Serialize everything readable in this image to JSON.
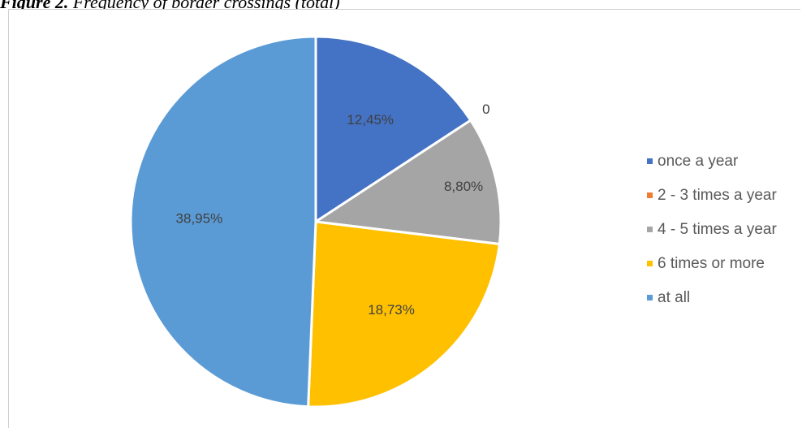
{
  "figure": {
    "caption_prefix": "Figure 2.",
    "caption_text": " Frequency of border crossings (total)"
  },
  "chart_data": {
    "type": "pie",
    "title": "",
    "categories": [
      "once a year",
      "2 - 3 times a year",
      "4 - 5 times a year",
      "6 times or more",
      "at all"
    ],
    "values": [
      12.45,
      0,
      8.8,
      18.73,
      38.95
    ],
    "data_labels": [
      "12,45%",
      "0",
      "8,80%",
      "18,73%",
      "38,95%"
    ],
    "colors": [
      "#4472c4",
      "#ed7d31",
      "#a5a5a5",
      "#ffc000",
      "#5b9bd5"
    ],
    "legend_position": "right"
  }
}
